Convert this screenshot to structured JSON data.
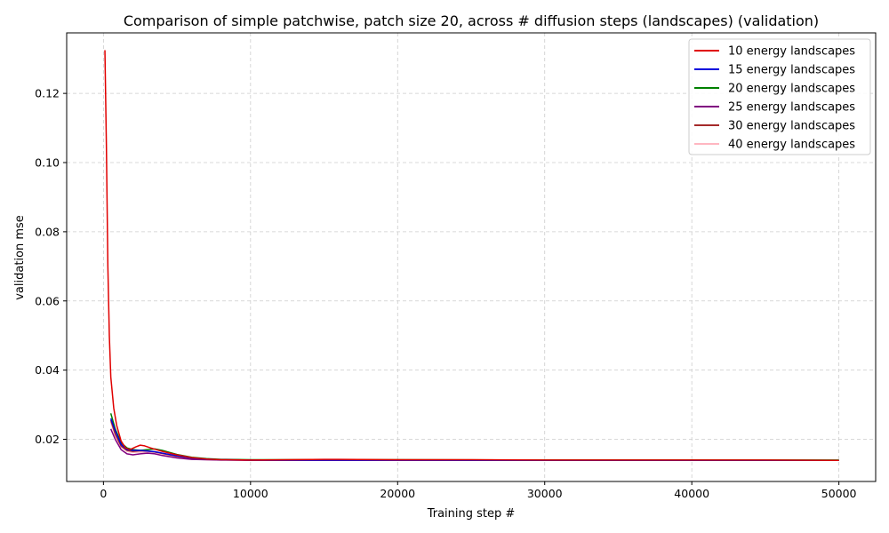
{
  "chart_data": {
    "type": "line",
    "title": "Comparison of simple patchwise, patch size 20, across # diffusion steps (landscapes) (validation)",
    "xlabel": "Training step #",
    "ylabel": "validation mse",
    "xlim": [
      -2500,
      52500
    ],
    "ylim": [
      0.0078,
      0.1375
    ],
    "xticks": [
      0,
      10000,
      20000,
      30000,
      40000,
      50000
    ],
    "yticks": [
      0.02,
      0.04,
      0.06,
      0.08,
      0.1,
      0.12
    ],
    "grid": true,
    "legend_position": "top-right",
    "series": [
      {
        "name": "10 energy landscapes",
        "color": "#e00000",
        "points": [
          [
            100,
            0.1325
          ],
          [
            200,
            0.105
          ],
          [
            300,
            0.07
          ],
          [
            400,
            0.05
          ],
          [
            500,
            0.038
          ],
          [
            700,
            0.029
          ],
          [
            900,
            0.024
          ],
          [
            1200,
            0.0195
          ],
          [
            1500,
            0.0175
          ],
          [
            1800,
            0.017
          ],
          [
            2200,
            0.0178
          ],
          [
            2500,
            0.0183
          ],
          [
            2800,
            0.0181
          ],
          [
            3200,
            0.0175
          ],
          [
            3600,
            0.017
          ],
          [
            4000,
            0.0165
          ],
          [
            5000,
            0.0155
          ],
          [
            6000,
            0.0147
          ],
          [
            7000,
            0.0143
          ],
          [
            8000,
            0.0141
          ],
          [
            10000,
            0.014
          ],
          [
            15000,
            0.0142
          ],
          [
            20000,
            0.0141
          ],
          [
            25000,
            0.0141
          ],
          [
            30000,
            0.014
          ],
          [
            40000,
            0.014
          ],
          [
            45000,
            0.014
          ],
          [
            50000,
            0.0139
          ]
        ]
      },
      {
        "name": "15 energy landscapes",
        "color": "#0000dd",
        "points": [
          [
            500,
            0.026
          ],
          [
            800,
            0.0225
          ],
          [
            1200,
            0.0185
          ],
          [
            1600,
            0.017
          ],
          [
            2000,
            0.0168
          ],
          [
            2500,
            0.0168
          ],
          [
            3000,
            0.0166
          ],
          [
            3500,
            0.0164
          ],
          [
            4000,
            0.016
          ],
          [
            5000,
            0.0152
          ],
          [
            6000,
            0.0146
          ],
          [
            7000,
            0.0143
          ],
          [
            8000,
            0.0141
          ],
          [
            10000,
            0.014
          ],
          [
            20000,
            0.014
          ],
          [
            30000,
            0.0139
          ],
          [
            40000,
            0.0139
          ],
          [
            50000,
            0.0139
          ]
        ]
      },
      {
        "name": "20 energy landscapes",
        "color": "#008000",
        "points": [
          [
            500,
            0.0275
          ],
          [
            800,
            0.023
          ],
          [
            1200,
            0.019
          ],
          [
            1600,
            0.0175
          ],
          [
            2000,
            0.017
          ],
          [
            2500,
            0.0168
          ],
          [
            3000,
            0.017
          ],
          [
            3500,
            0.0172
          ],
          [
            4000,
            0.0168
          ],
          [
            5000,
            0.0156
          ],
          [
            6000,
            0.0148
          ],
          [
            7000,
            0.0144
          ],
          [
            8000,
            0.0142
          ],
          [
            10000,
            0.0141
          ],
          [
            20000,
            0.0141
          ],
          [
            30000,
            0.014
          ],
          [
            40000,
            0.014
          ],
          [
            50000,
            0.014
          ]
        ]
      },
      {
        "name": "25 energy landscapes",
        "color": "#800080",
        "points": [
          [
            500,
            0.023
          ],
          [
            800,
            0.02
          ],
          [
            1200,
            0.017
          ],
          [
            1600,
            0.0158
          ],
          [
            2000,
            0.0155
          ],
          [
            2500,
            0.0158
          ],
          [
            3000,
            0.016
          ],
          [
            3500,
            0.0158
          ],
          [
            4000,
            0.0153
          ],
          [
            5000,
            0.0146
          ],
          [
            6000,
            0.0142
          ],
          [
            8000,
            0.014
          ],
          [
            10000,
            0.0139
          ],
          [
            20000,
            0.0139
          ],
          [
            30000,
            0.0139
          ],
          [
            40000,
            0.0139
          ],
          [
            50000,
            0.0139
          ]
        ]
      },
      {
        "name": "30 energy landscapes",
        "color": "#a52a2a",
        "points": [
          [
            500,
            0.0255
          ],
          [
            800,
            0.0215
          ],
          [
            1200,
            0.018
          ],
          [
            1600,
            0.0168
          ],
          [
            2000,
            0.0165
          ],
          [
            2500,
            0.0167
          ],
          [
            3000,
            0.0166
          ],
          [
            3500,
            0.0163
          ],
          [
            4000,
            0.0159
          ],
          [
            5000,
            0.0151
          ],
          [
            6000,
            0.0145
          ],
          [
            7000,
            0.0142
          ],
          [
            8000,
            0.0141
          ],
          [
            10000,
            0.014
          ],
          [
            15000,
            0.0141
          ],
          [
            20000,
            0.014
          ],
          [
            30000,
            0.014
          ],
          [
            40000,
            0.014
          ],
          [
            50000,
            0.0139
          ]
        ]
      },
      {
        "name": "40 energy landscapes",
        "color": "#ffb6c1",
        "points": [
          [
            500,
            0.025
          ],
          [
            800,
            0.021
          ],
          [
            1200,
            0.0178
          ],
          [
            1600,
            0.0165
          ],
          [
            2000,
            0.0162
          ],
          [
            2500,
            0.0163
          ],
          [
            3000,
            0.0162
          ],
          [
            3500,
            0.0158
          ],
          [
            4000,
            0.0154
          ],
          [
            5000,
            0.0147
          ],
          [
            6000,
            0.0143
          ],
          [
            7000,
            0.0141
          ],
          [
            8000,
            0.014
          ],
          [
            10000,
            0.0139
          ],
          [
            20000,
            0.0139
          ],
          [
            30000,
            0.0139
          ],
          [
            40000,
            0.0139
          ],
          [
            50000,
            0.0139
          ]
        ]
      }
    ]
  }
}
